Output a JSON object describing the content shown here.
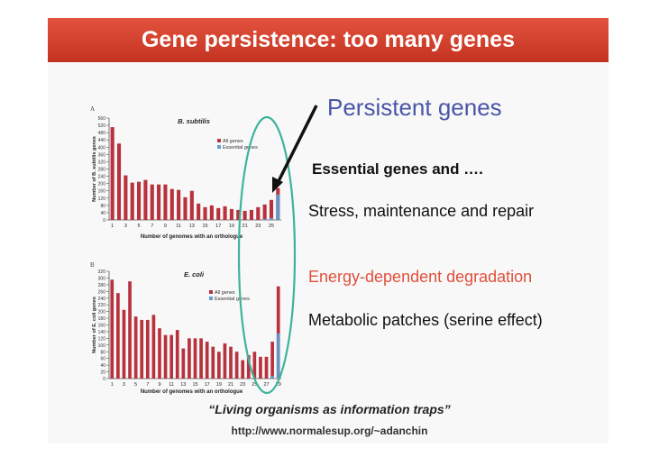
{
  "slide": {
    "title": "Gene persistence: too many genes",
    "persistent_label": "Persistent genes",
    "essential_label": "Essential genes and ….",
    "stress_label": "Stress, maintenance and repair",
    "energy_label": "Energy-dependent degradation",
    "metabolic_label": "Metabolic patches (serine effect)",
    "quote": "“Living organisms as information traps”",
    "url": "http://www.normalesup.org/~adanchin",
    "colors": {
      "title_bar": "#d6402c",
      "persistent": "#4a55a8",
      "energy": "#e0503c",
      "ellipse": "#3fb39a",
      "all_genes": "#b8323e",
      "essential_genes": "#5f9fd3"
    }
  },
  "chart_data": [
    {
      "type": "bar",
      "panel_letter": "A",
      "title": "B. subtilis",
      "xlabel": "Number of genomes with an orthologue",
      "ylabel": "Number of B. subtilis genes",
      "ylim": [
        0,
        560
      ],
      "yticks": [
        0,
        40,
        80,
        120,
        160,
        200,
        240,
        280,
        320,
        360,
        400,
        440,
        480,
        520,
        560
      ],
      "xtick_labels": [
        "1",
        "3",
        "5",
        "7",
        "9",
        "11",
        "13",
        "15",
        "17",
        "19",
        "21",
        "23",
        "25"
      ],
      "categories": [
        1,
        2,
        3,
        4,
        5,
        6,
        7,
        8,
        9,
        10,
        11,
        12,
        13,
        14,
        15,
        16,
        17,
        18,
        19,
        20,
        21,
        22,
        23,
        24,
        25,
        26
      ],
      "legend_position": "right",
      "series": [
        {
          "name": "All genes",
          "color": "#b8323e",
          "values": [
            510,
            420,
            245,
            205,
            210,
            220,
            195,
            195,
            195,
            170,
            165,
            125,
            160,
            90,
            70,
            80,
            65,
            75,
            60,
            55,
            50,
            55,
            70,
            85,
            110,
            175
          ]
        },
        {
          "name": "Essential genes",
          "color": "#5f9fd3",
          "values": [
            0,
            0,
            0,
            0,
            0,
            0,
            0,
            0,
            0,
            0,
            0,
            0,
            0,
            0,
            0,
            0,
            0,
            0,
            0,
            0,
            0,
            0,
            0,
            5,
            10,
            140
          ]
        }
      ]
    },
    {
      "type": "bar",
      "panel_letter": "B",
      "title": "E. coli",
      "xlabel": "Number of genomes with an orthologue",
      "ylabel": "Number of E. coli genes",
      "ylim": [
        0,
        320
      ],
      "yticks": [
        0,
        20,
        40,
        60,
        80,
        100,
        120,
        140,
        160,
        180,
        200,
        220,
        240,
        260,
        280,
        300,
        320
      ],
      "xtick_labels": [
        "1",
        "3",
        "5",
        "7",
        "9",
        "11",
        "13",
        "15",
        "17",
        "19",
        "21",
        "23",
        "25",
        "27",
        "29"
      ],
      "categories": [
        1,
        2,
        3,
        4,
        5,
        6,
        7,
        8,
        9,
        10,
        11,
        12,
        13,
        14,
        15,
        16,
        17,
        18,
        19,
        20,
        21,
        22,
        23,
        24,
        25,
        26,
        27,
        28,
        29
      ],
      "legend_position": "right",
      "series": [
        {
          "name": "All genes",
          "color": "#b8323e",
          "values": [
            295,
            255,
            205,
            290,
            185,
            175,
            175,
            190,
            150,
            130,
            130,
            145,
            90,
            120,
            120,
            120,
            110,
            95,
            80,
            105,
            95,
            80,
            55,
            70,
            80,
            65,
            65,
            110,
            275
          ]
        },
        {
          "name": "Essential genes",
          "color": "#5f9fd3",
          "values": [
            0,
            0,
            0,
            0,
            0,
            0,
            0,
            0,
            0,
            0,
            0,
            0,
            0,
            0,
            0,
            0,
            0,
            0,
            0,
            0,
            0,
            0,
            0,
            0,
            0,
            0,
            0,
            8,
            135
          ]
        }
      ]
    }
  ]
}
